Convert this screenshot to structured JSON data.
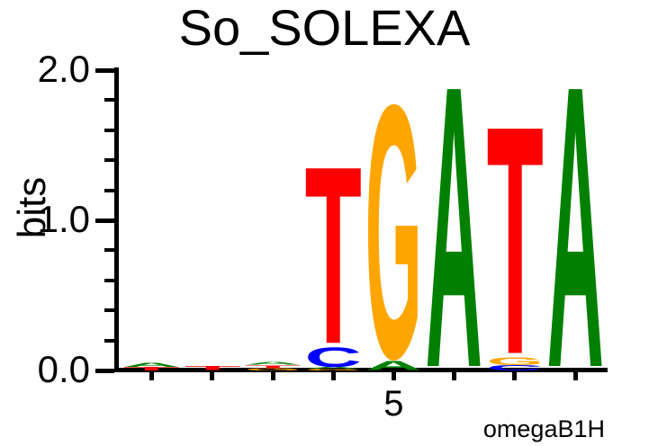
{
  "title": "So_SOLEXA",
  "attribution": "omegaB1H",
  "y_axis": {
    "label": "bits",
    "major_ticks": [
      {
        "label": "2.0",
        "bits": 2.0
      },
      {
        "label": "1.0",
        "bits": 1.0
      },
      {
        "label": "0.0",
        "bits": 0.0
      }
    ],
    "minor_tick_bits": [
      0.2,
      0.4,
      0.6,
      0.8,
      1.2,
      1.4,
      1.6,
      1.8
    ],
    "range": [
      0.0,
      2.0
    ]
  },
  "x_axis": {
    "num_positions": 8,
    "labels": [
      {
        "text": "5",
        "position": 5
      }
    ]
  },
  "colors": {
    "A": "#008000",
    "C": "#0000FF",
    "G": "#FFA500",
    "T": "#FF0000"
  },
  "chart_data": {
    "type": "sequence_logo",
    "title": "So_SOLEXA",
    "ylabel": "bits",
    "unit": "bits",
    "ylim": [
      0,
      2
    ],
    "alphabet": "ACGT",
    "positions": [
      {
        "pos": 1,
        "stack": [
          {
            "letter": "T",
            "bits": 0.025
          },
          {
            "letter": "A",
            "bits": 0.03
          }
        ]
      },
      {
        "pos": 2,
        "stack": [
          {
            "letter": "T",
            "bits": 0.028
          }
        ]
      },
      {
        "pos": 3,
        "stack": [
          {
            "letter": "G",
            "bits": 0.018
          },
          {
            "letter": "T",
            "bits": 0.02
          },
          {
            "letter": "A",
            "bits": 0.02
          }
        ]
      },
      {
        "pos": 4,
        "stack": [
          {
            "letter": "G",
            "bits": 0.012
          },
          {
            "letter": "A",
            "bits": 0.012
          },
          {
            "letter": "C",
            "bits": 0.14
          },
          {
            "letter": "T",
            "bits": 1.26
          }
        ]
      },
      {
        "pos": 5,
        "stack": [
          {
            "letter": "A",
            "bits": 0.065
          },
          {
            "letter": "G",
            "bits": 1.8
          }
        ]
      },
      {
        "pos": 6,
        "stack": [
          {
            "letter": "A",
            "bits": 2.0
          }
        ]
      },
      {
        "pos": 7,
        "stack": [
          {
            "letter": "C",
            "bits": 0.035
          },
          {
            "letter": "G",
            "bits": 0.055
          },
          {
            "letter": "T",
            "bits": 1.62
          }
        ]
      },
      {
        "pos": 8,
        "stack": [
          {
            "letter": "A",
            "bits": 2.0
          }
        ]
      }
    ]
  }
}
